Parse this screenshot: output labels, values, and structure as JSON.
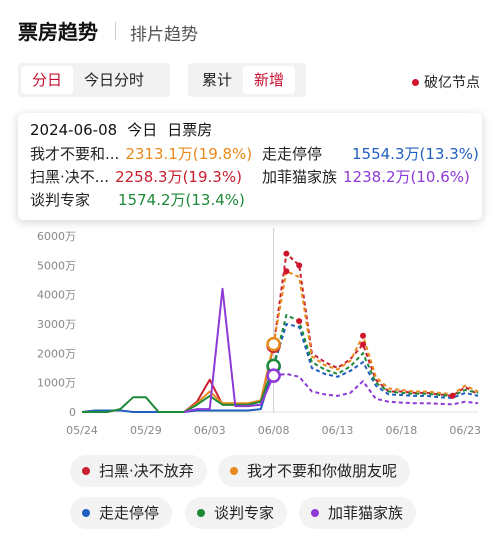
{
  "header": {
    "title": "票房趋势",
    "subtitle": "排片趋势"
  },
  "segment_left": {
    "items": [
      "分日",
      "今日分时"
    ],
    "active": 0
  },
  "segment_right": {
    "items": [
      "累计",
      "新增"
    ],
    "active": 1
  },
  "legend_node": {
    "label": "破亿节点",
    "color": "#d0142c"
  },
  "tooltip": {
    "date": "2024-06-08",
    "day_label": "今日",
    "metric": "日票房",
    "rows": [
      {
        "name": "我才不要和...",
        "value": "2313.1万(19.8%)",
        "color": "#e8891c"
      },
      {
        "name": "走走停停",
        "value": "1554.3万(13.3%)",
        "color": "#1f5fbf"
      },
      {
        "name": "扫黑·决不...",
        "value": "2258.3万(19.3%)",
        "color": "#c8202f"
      },
      {
        "name": "加菲猫家族",
        "value": "1238.2万(10.6%)",
        "color": "#8e3ad6"
      },
      {
        "name": "谈判专家",
        "value": "1574.2万(13.4%)",
        "color": "#1e8a3a"
      }
    ]
  },
  "chart_data": {
    "type": "line",
    "y_tick_labels": [
      "0",
      "1000万",
      "2000万",
      "3000万",
      "4000万",
      "5000万",
      "6000万"
    ],
    "ylim": [
      0,
      6000
    ],
    "x_tick_labels": [
      "05/24",
      "05/29",
      "06/03",
      "06/08",
      "06/13",
      "06/18",
      "06/23"
    ],
    "x": [
      "05/24",
      "05/25",
      "05/26",
      "05/27",
      "05/28",
      "05/29",
      "05/30",
      "05/31",
      "06/01",
      "06/02",
      "06/03",
      "06/04",
      "06/05",
      "06/06",
      "06/07",
      "06/08",
      "06/09",
      "06/10",
      "06/11",
      "06/12",
      "06/13",
      "06/14",
      "06/15",
      "06/16",
      "06/17",
      "06/18",
      "06/19",
      "06/20",
      "06/21",
      "06/22",
      "06/23",
      "06/24"
    ],
    "highlight_date": "06/08",
    "actual_through": "06/08",
    "series": [
      {
        "name": "扫黑·决不放弃",
        "color": "#c8202f",
        "values": [
          null,
          null,
          null,
          null,
          null,
          null,
          null,
          null,
          0,
          350,
          1100,
          250,
          250,
          250,
          350,
          2258,
          5400,
          5000,
          2000,
          1700,
          1500,
          1800,
          2300,
          1100,
          700,
          700,
          650,
          650,
          600,
          550,
          850,
          600
        ]
      },
      {
        "name": "我才不要和你做朋友呢",
        "color": "#e8891c",
        "values": [
          null,
          null,
          null,
          null,
          null,
          null,
          null,
          null,
          0,
          300,
          700,
          300,
          300,
          300,
          400,
          2313,
          4800,
          4600,
          1900,
          1600,
          1450,
          1750,
          2600,
          1200,
          800,
          750,
          700,
          700,
          650,
          600,
          900,
          700
        ]
      },
      {
        "name": "走走停停",
        "color": "#1f5fbf",
        "values": [
          0,
          50,
          50,
          50,
          0,
          0,
          0,
          0,
          0,
          50,
          50,
          50,
          50,
          50,
          100,
          1554,
          3000,
          2900,
          1500,
          1300,
          1200,
          1400,
          1700,
          900,
          600,
          580,
          550,
          550,
          500,
          480,
          650,
          550
        ]
      },
      {
        "name": "谈判专家",
        "color": "#1e8a3a",
        "values": [
          0,
          0,
          0,
          100,
          500,
          500,
          0,
          0,
          0,
          250,
          550,
          250,
          250,
          250,
          350,
          1574,
          3300,
          3100,
          1700,
          1450,
          1300,
          1550,
          2000,
          1000,
          700,
          650,
          620,
          620,
          580,
          550,
          750,
          650
        ]
      },
      {
        "name": "加菲猫家族",
        "color": "#8e3ad6",
        "values": [
          null,
          null,
          null,
          null,
          null,
          null,
          null,
          null,
          0,
          100,
          100,
          4200,
          200,
          200,
          250,
          1238,
          1300,
          1200,
          700,
          600,
          550,
          650,
          1050,
          450,
          350,
          320,
          300,
          300,
          280,
          260,
          350,
          300
        ]
      }
    ],
    "markers": [
      {
        "series": 0,
        "x": "06/09"
      },
      {
        "series": 1,
        "x": "06/09"
      },
      {
        "series": 0,
        "x": "06/10"
      },
      {
        "series": 3,
        "x": "06/10"
      },
      {
        "series": 0,
        "x": "06/15"
      },
      {
        "series": 1,
        "x": "06/15"
      },
      {
        "series": 0,
        "x": "06/22"
      }
    ]
  },
  "legend_chips": [
    {
      "label": "扫黑·决不放弃",
      "color": "#c8202f"
    },
    {
      "label": "我才不要和你做朋友呢",
      "color": "#e8891c"
    },
    {
      "label": "走走停停",
      "color": "#1f5fbf"
    },
    {
      "label": "谈判专家",
      "color": "#1e8a3a"
    },
    {
      "label": "加菲猫家族",
      "color": "#8e3ad6"
    }
  ]
}
